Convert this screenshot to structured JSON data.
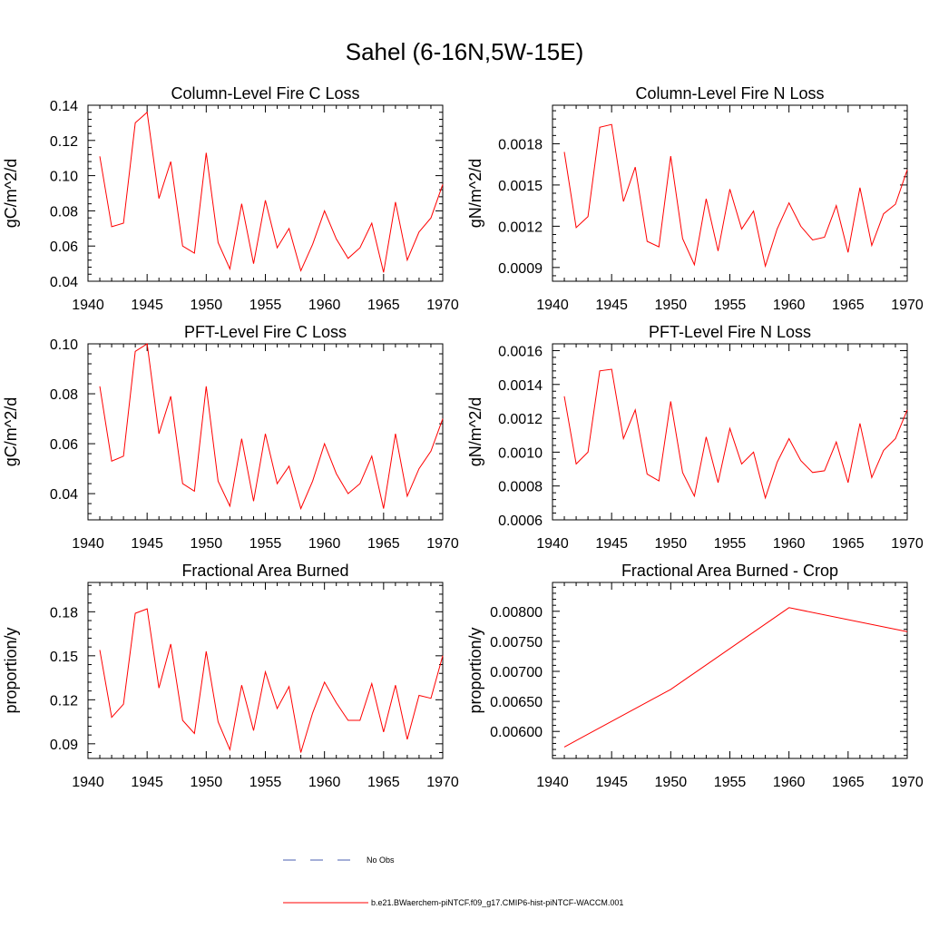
{
  "figure_title": "Sahel (6-16N,5W-15E)",
  "legend": {
    "entries": [
      {
        "label": "No Obs",
        "color": "#4a5fb0",
        "style": "dashed"
      },
      {
        "label": "b.e21.BWaerchem-piNTCF.f09_g17.CMIP6-hist-piNTCF-WACCM.001",
        "color": "#ff0000",
        "style": "solid"
      }
    ]
  },
  "chart_data": [
    {
      "type": "line",
      "title": "Column-Level Fire C Loss",
      "ylabel": "gC/m^2/d",
      "xlim": [
        1940,
        1970
      ],
      "ylim": [
        0.04,
        0.14
      ],
      "xticks": [
        1940,
        1945,
        1950,
        1955,
        1960,
        1965,
        1970
      ],
      "yticks": [
        0.04,
        0.06,
        0.08,
        0.1,
        0.12,
        0.14
      ],
      "ytick_labels": [
        "0.04",
        "0.06",
        "0.08",
        "0.10",
        "0.12",
        "0.14"
      ],
      "x": [
        1941,
        1942,
        1943,
        1944,
        1945,
        1946,
        1947,
        1948,
        1949,
        1950,
        1951,
        1952,
        1953,
        1954,
        1955,
        1956,
        1957,
        1958,
        1959,
        1960,
        1961,
        1962,
        1963,
        1964,
        1965,
        1966,
        1967,
        1968,
        1969,
        1970
      ],
      "series": [
        {
          "color": "#ff0000",
          "values": [
            0.111,
            0.071,
            0.073,
            0.13,
            0.136,
            0.087,
            0.108,
            0.06,
            0.056,
            0.113,
            0.062,
            0.047,
            0.084,
            0.05,
            0.086,
            0.059,
            0.07,
            0.046,
            0.061,
            0.08,
            0.064,
            0.053,
            0.059,
            0.073,
            0.045,
            0.085,
            0.052,
            0.068,
            0.076,
            0.095
          ]
        }
      ]
    },
    {
      "type": "line",
      "title": "Column-Level Fire N Loss",
      "ylabel": "gN/m^2/d",
      "xlim": [
        1940,
        1970
      ],
      "ylim": [
        0.0008,
        0.00208
      ],
      "xticks": [
        1940,
        1945,
        1950,
        1955,
        1960,
        1965,
        1970
      ],
      "yticks": [
        0.0009,
        0.0012,
        0.0015,
        0.0018
      ],
      "ytick_labels": [
        "0.0009",
        "0.0012",
        "0.0015",
        "0.0018"
      ],
      "x": [
        1941,
        1942,
        1943,
        1944,
        1945,
        1946,
        1947,
        1948,
        1949,
        1950,
        1951,
        1952,
        1953,
        1954,
        1955,
        1956,
        1957,
        1958,
        1959,
        1960,
        1961,
        1962,
        1963,
        1964,
        1965,
        1966,
        1967,
        1968,
        1969,
        1970
      ],
      "series": [
        {
          "color": "#ff0000",
          "values": [
            0.00174,
            0.00119,
            0.00127,
            0.00192,
            0.00194,
            0.00138,
            0.00163,
            0.00109,
            0.00105,
            0.00171,
            0.00111,
            0.00092,
            0.0014,
            0.00102,
            0.00147,
            0.00118,
            0.00131,
            0.00091,
            0.00118,
            0.00137,
            0.0012,
            0.0011,
            0.00112,
            0.00135,
            0.00101,
            0.00148,
            0.00106,
            0.00129,
            0.00136,
            0.00161
          ]
        }
      ]
    },
    {
      "type": "line",
      "title": "PFT-Level Fire C Loss",
      "ylabel": "gC/m^2/d",
      "xlim": [
        1940,
        1970
      ],
      "ylim": [
        0.0295,
        0.1
      ],
      "xticks": [
        1940,
        1945,
        1950,
        1955,
        1960,
        1965,
        1970
      ],
      "yticks": [
        0.04,
        0.06,
        0.08,
        0.1
      ],
      "ytick_labels": [
        "0.04",
        "0.06",
        "0.08",
        "0.10"
      ],
      "x": [
        1941,
        1942,
        1943,
        1944,
        1945,
        1946,
        1947,
        1948,
        1949,
        1950,
        1951,
        1952,
        1953,
        1954,
        1955,
        1956,
        1957,
        1958,
        1959,
        1960,
        1961,
        1962,
        1963,
        1964,
        1965,
        1966,
        1967,
        1968,
        1969,
        1970
      ],
      "series": [
        {
          "color": "#ff0000",
          "values": [
            0.083,
            0.053,
            0.055,
            0.097,
            0.1,
            0.064,
            0.079,
            0.044,
            0.041,
            0.083,
            0.045,
            0.035,
            0.062,
            0.037,
            0.064,
            0.044,
            0.051,
            0.034,
            0.045,
            0.06,
            0.048,
            0.04,
            0.044,
            0.055,
            0.034,
            0.064,
            0.039,
            0.05,
            0.057,
            0.07
          ]
        }
      ]
    },
    {
      "type": "line",
      "title": "PFT-Level Fire N Loss",
      "ylabel": "gN/m^2/d",
      "xlim": [
        1940,
        1970
      ],
      "ylim": [
        0.0006,
        0.00164
      ],
      "xticks": [
        1940,
        1945,
        1950,
        1955,
        1960,
        1965,
        1970
      ],
      "yticks": [
        0.0006,
        0.0008,
        0.001,
        0.0012,
        0.0014,
        0.0016
      ],
      "ytick_labels": [
        "0.0006",
        "0.0008",
        "0.0010",
        "0.0012",
        "0.0014",
        "0.0016"
      ],
      "x": [
        1941,
        1942,
        1943,
        1944,
        1945,
        1946,
        1947,
        1948,
        1949,
        1950,
        1951,
        1952,
        1953,
        1954,
        1955,
        1956,
        1957,
        1958,
        1959,
        1960,
        1961,
        1962,
        1963,
        1964,
        1965,
        1966,
        1967,
        1968,
        1969,
        1970
      ],
      "series": [
        {
          "color": "#ff0000",
          "values": [
            0.00133,
            0.00093,
            0.001,
            0.00148,
            0.00149,
            0.00108,
            0.00125,
            0.00087,
            0.00083,
            0.0013,
            0.00088,
            0.00074,
            0.00109,
            0.00082,
            0.00114,
            0.00093,
            0.001,
            0.00073,
            0.00094,
            0.00108,
            0.00095,
            0.00088,
            0.00089,
            0.00106,
            0.00082,
            0.00117,
            0.00085,
            0.00101,
            0.00108,
            0.00125
          ]
        }
      ]
    },
    {
      "type": "line",
      "title": "Fractional Area Burned",
      "ylabel": "proportion/y",
      "xlim": [
        1940,
        1970
      ],
      "ylim": [
        0.08,
        0.2
      ],
      "xticks": [
        1940,
        1945,
        1950,
        1955,
        1960,
        1965,
        1970
      ],
      "yticks": [
        0.09,
        0.12,
        0.15,
        0.18
      ],
      "ytick_labels": [
        "0.09",
        "0.12",
        "0.15",
        "0.18"
      ],
      "x": [
        1941,
        1942,
        1943,
        1944,
        1945,
        1946,
        1947,
        1948,
        1949,
        1950,
        1951,
        1952,
        1953,
        1954,
        1955,
        1956,
        1957,
        1958,
        1959,
        1960,
        1961,
        1962,
        1963,
        1964,
        1965,
        1966,
        1967,
        1968,
        1969,
        1970
      ],
      "series": [
        {
          "color": "#ff0000",
          "values": [
            0.154,
            0.108,
            0.117,
            0.179,
            0.182,
            0.128,
            0.158,
            0.106,
            0.097,
            0.153,
            0.105,
            0.086,
            0.13,
            0.099,
            0.139,
            0.114,
            0.129,
            0.084,
            0.111,
            0.132,
            0.118,
            0.106,
            0.106,
            0.131,
            0.098,
            0.13,
            0.093,
            0.123,
            0.121,
            0.15
          ]
        }
      ]
    },
    {
      "type": "line",
      "title": "Fractional Area Burned - Crop",
      "ylabel": "proportion/y",
      "xlim": [
        1940,
        1970
      ],
      "ylim": [
        0.00555,
        0.00848
      ],
      "xticks": [
        1940,
        1945,
        1950,
        1955,
        1960,
        1965,
        1970
      ],
      "yticks": [
        0.006,
        0.0065,
        0.007,
        0.0075,
        0.008
      ],
      "ytick_labels": [
        "0.00600",
        "0.00650",
        "0.00700",
        "0.00750",
        "0.00800"
      ],
      "x": [
        1941,
        1950,
        1960,
        1970
      ],
      "series": [
        {
          "color": "#ff0000",
          "values": [
            0.00574,
            0.0067,
            0.00806,
            0.00766
          ]
        }
      ]
    }
  ]
}
